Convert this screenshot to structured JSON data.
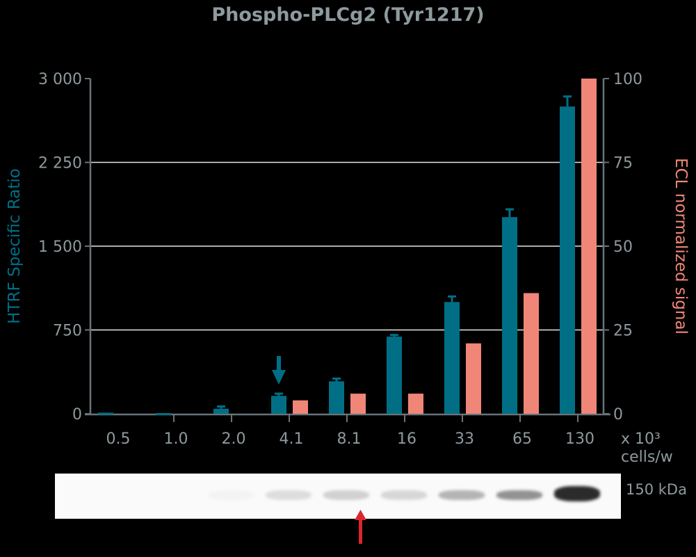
{
  "chart_data": {
    "type": "bar",
    "title": "Phospho-PLCg2 (Tyr1217)",
    "xlabel": "x 10³ cells/w",
    "xlabel_line1": "x 10³",
    "xlabel_line2": "cells/w",
    "categories": [
      "0.5",
      "1.0",
      "2.0",
      "4.1",
      "8.1",
      "16",
      "33",
      "65",
      "130"
    ],
    "series": [
      {
        "name": "HTRF Specific Ratio",
        "axis": "left",
        "color": "#006f86",
        "values": [
          10,
          -5,
          45,
          160,
          290,
          690,
          1000,
          1760,
          2750
        ],
        "error": [
          0,
          0,
          20,
          20,
          25,
          15,
          50,
          70,
          90
        ]
      },
      {
        "name": "ECL normalized signal",
        "axis": "right",
        "color": "#f08677",
        "values": [
          null,
          null,
          null,
          4,
          6,
          6,
          21,
          36,
          100
        ]
      }
    ],
    "ylabel_left": "HTRF Specific Ratio",
    "ylabel_right": "ECL normalized signal",
    "ylim_left": [
      0,
      3000
    ],
    "yticks_left": [
      "0",
      "750",
      "1 500",
      "2 250",
      "3 000"
    ],
    "ylim_right": [
      0,
      100
    ],
    "yticks_right": [
      "0",
      "25",
      "50",
      "75",
      "100"
    ],
    "grid": true,
    "annotations": [
      {
        "type": "arrow-down",
        "color": "#006f86",
        "at_category": "4.1"
      },
      {
        "type": "arrow-up",
        "color": "#d9262f",
        "at_category": "8.1",
        "location": "below western blot"
      }
    ],
    "western_blot": {
      "label": "150 kDa",
      "band_intensities": [
        0,
        0,
        0.03,
        0.12,
        0.18,
        0.15,
        0.3,
        0.45,
        0.9
      ]
    }
  }
}
